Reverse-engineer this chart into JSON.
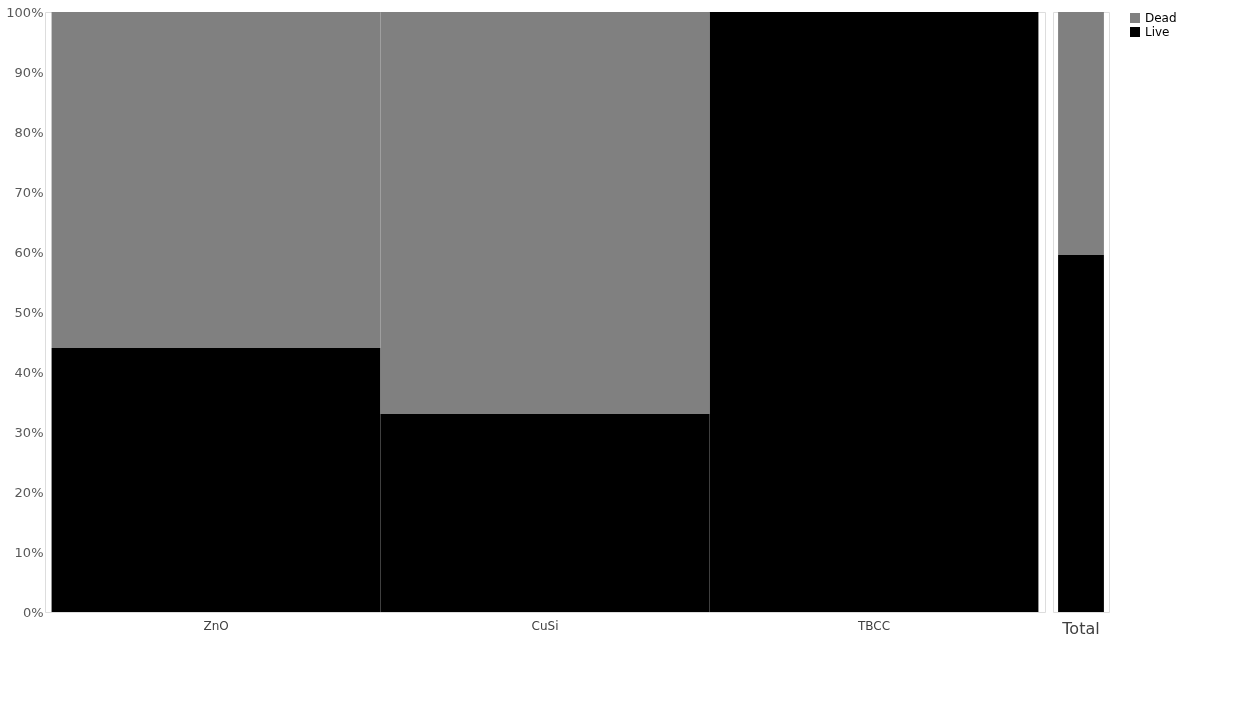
{
  "chart_data": [
    {
      "type": "bar",
      "stacked": true,
      "categories": [
        "ZnO",
        "CuSi",
        "TBCC"
      ],
      "series": [
        {
          "color": "#000000",
          "values": [
            44,
            33,
            100
          ]
        },
        {
          "color": "#808080",
          "values": [
            56,
            67,
            0
          ]
        }
      ],
      "ylim": [
        0,
        100
      ],
      "yticks": [
        {
          "value": 0,
          "label": "0%"
        },
        {
          "value": 10,
          "label": "10%"
        },
        {
          "value": 20,
          "label": "20%"
        },
        {
          "value": 30,
          "label": "30%"
        },
        {
          "value": 40,
          "label": "40%"
        },
        {
          "value": 50,
          "label": "50%"
        },
        {
          "value": 60,
          "label": "60%"
        },
        {
          "value": 70,
          "label": "70%"
        },
        {
          "value": 80,
          "label": "80%"
        },
        {
          "value": 90,
          "label": "90%"
        },
        {
          "value": 100,
          "label": "100%"
        }
      ],
      "grid": false
    },
    {
      "type": "bar",
      "stacked": true,
      "categories": [
        "Total"
      ],
      "series": [
        {
          "name": "Live",
          "color": "#000000",
          "values": [
            59.5
          ]
        },
        {
          "name": "Dead",
          "color": "#808080",
          "values": [
            40.5
          ]
        }
      ],
      "ylim": [
        0,
        100
      ],
      "tick_labels": "x",
      "grid": false,
      "legend": "right"
    }
  ]
}
